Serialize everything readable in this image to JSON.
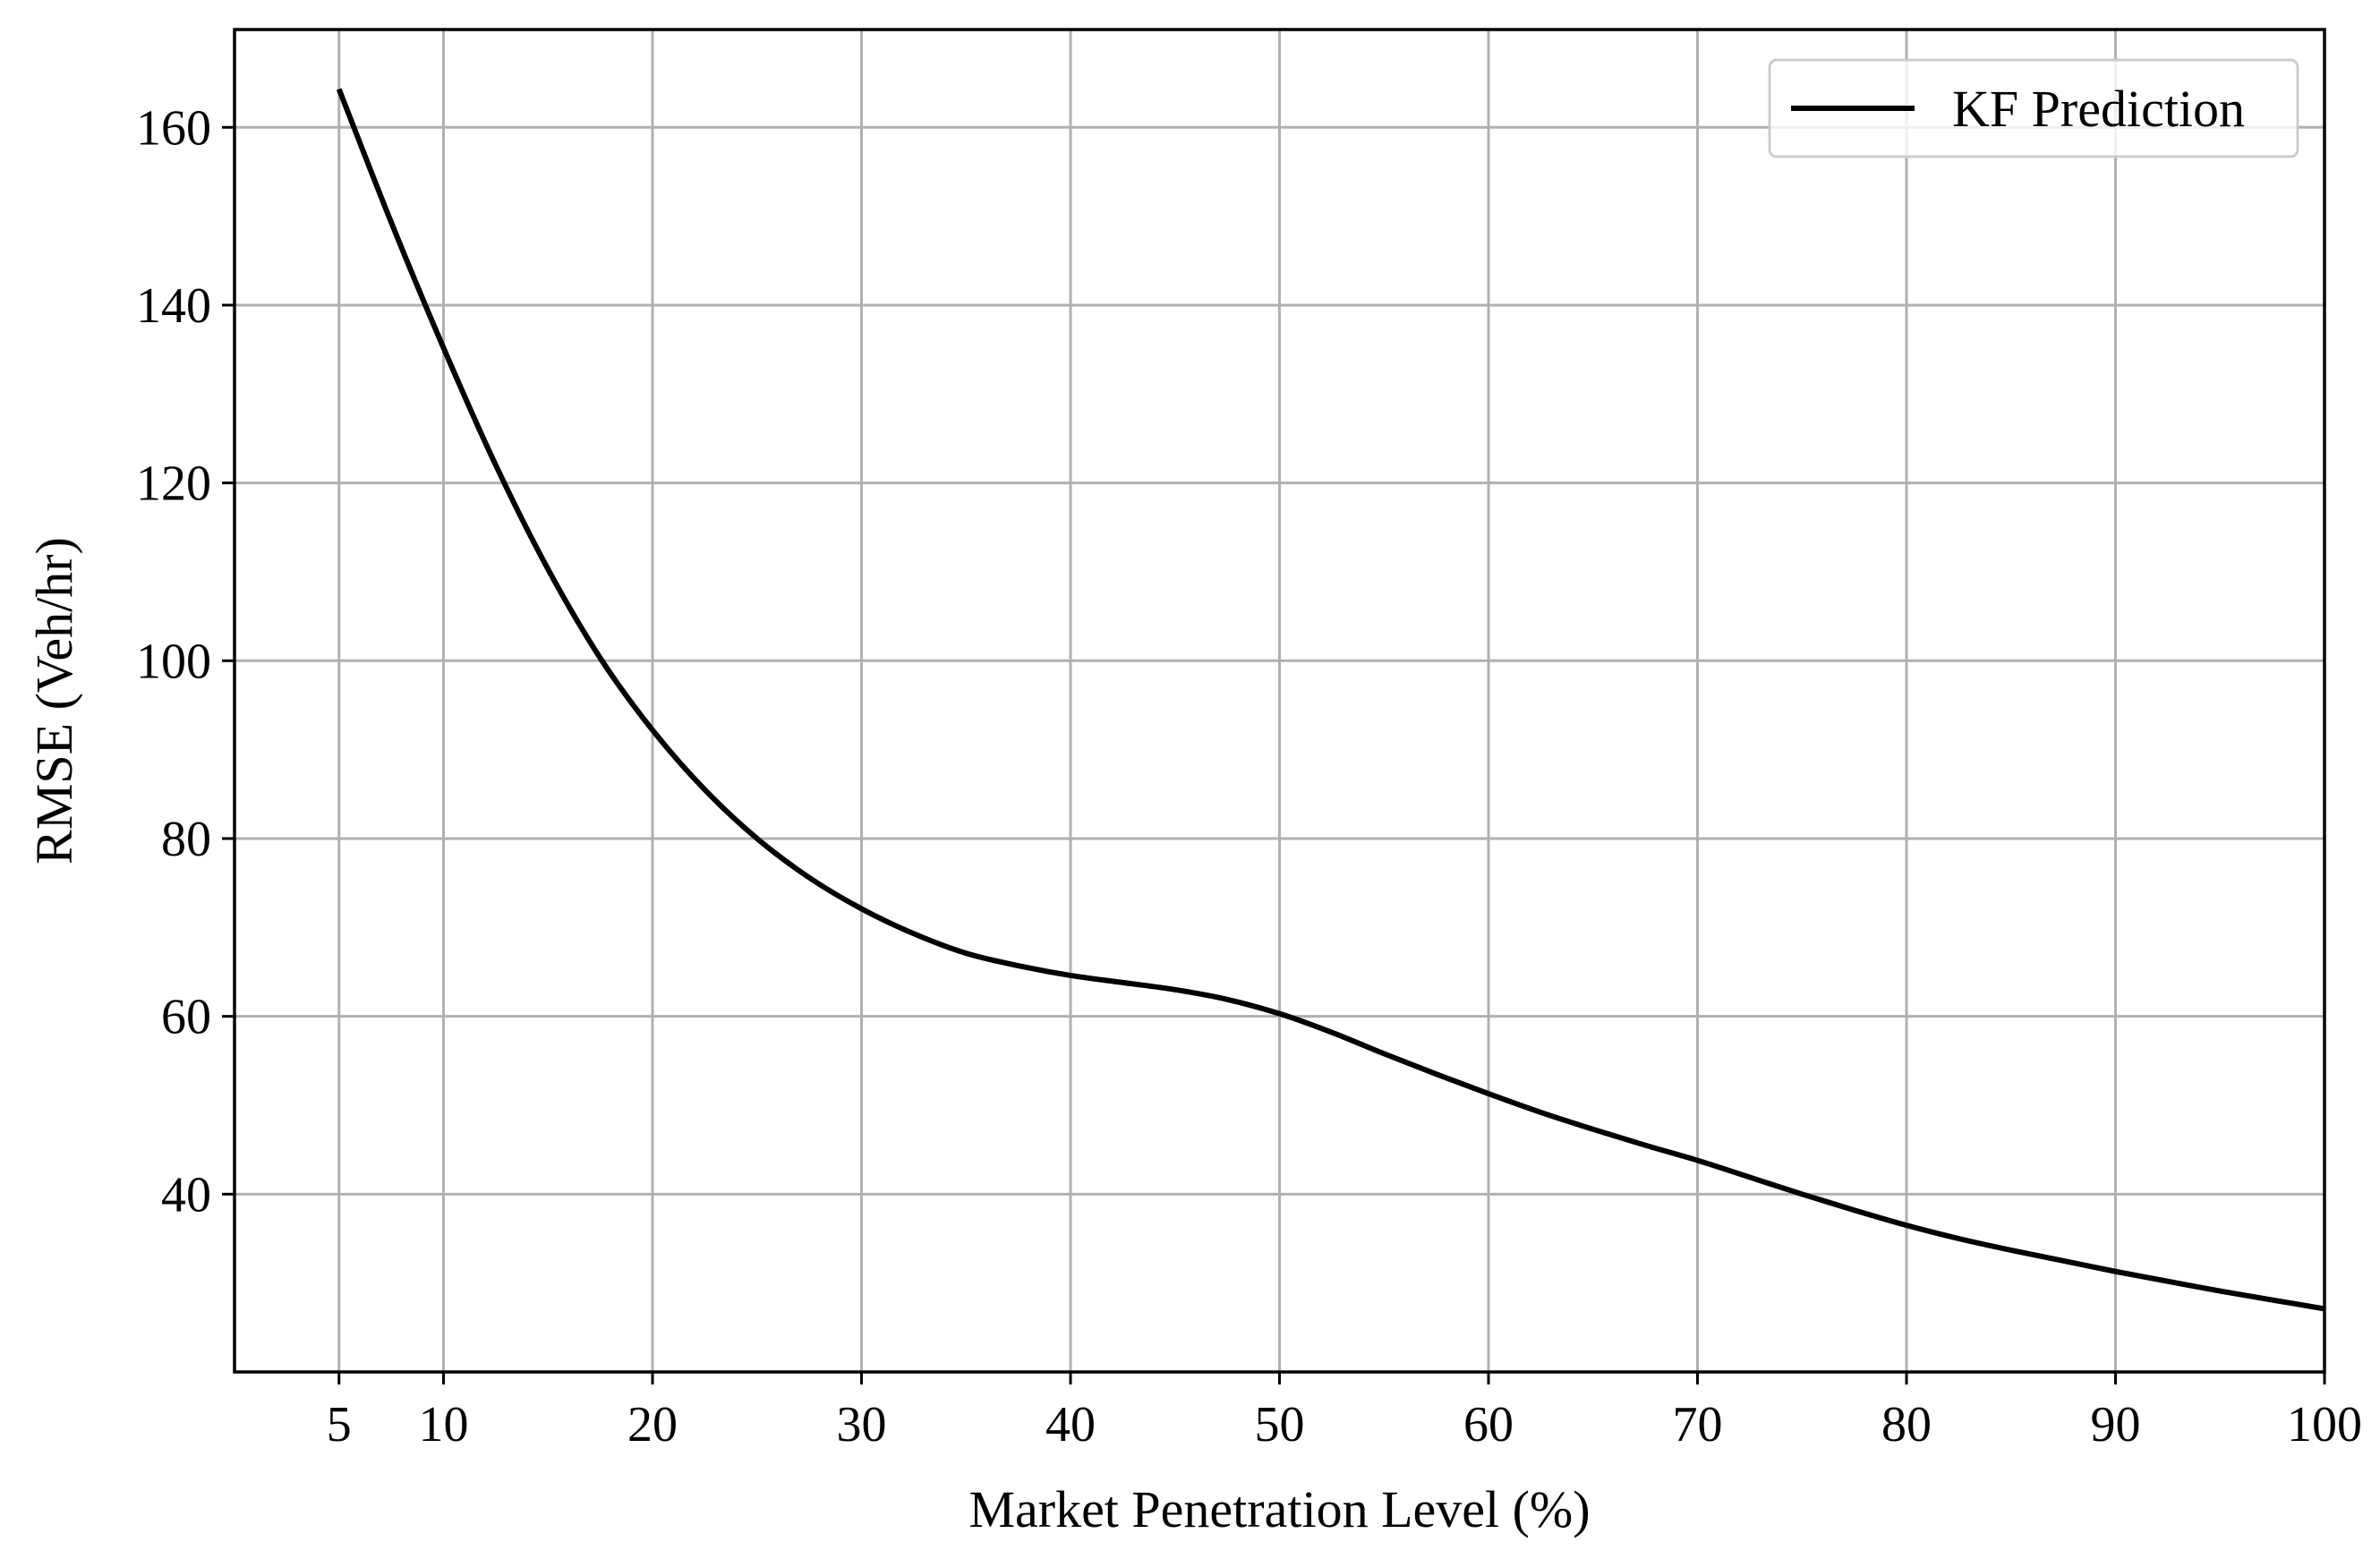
{
  "chart_data": {
    "type": "line",
    "title": "",
    "xlabel": "Market Penetration Level (%)",
    "ylabel": "RMSE (Veh/hr)",
    "xlim": [
      0,
      100
    ],
    "ylim": [
      20,
      171
    ],
    "xticks": [
      5,
      10,
      20,
      30,
      40,
      50,
      60,
      70,
      80,
      90,
      100
    ],
    "xtick_labels": [
      "5",
      "10",
      "20",
      "30",
      "40",
      "50",
      "60",
      "70",
      "80",
      "90",
      "100"
    ],
    "yticks": [
      40,
      60,
      80,
      100,
      120,
      140,
      160
    ],
    "ytick_labels": [
      "40",
      "60",
      "80",
      "100",
      "120",
      "140",
      "160"
    ],
    "grid": true,
    "legend": {
      "location": "top-right",
      "entries": [
        "KF Prediction"
      ]
    },
    "series": [
      {
        "name": "KF Prediction",
        "color": "#000000",
        "x": [
          5,
          7.5,
          10,
          12.5,
          15,
          17.5,
          20,
          22.5,
          25,
          27.5,
          30,
          32.5,
          35,
          37.5,
          40,
          42.5,
          45,
          47.5,
          50,
          52.5,
          55,
          57.5,
          60,
          62.5,
          65,
          67.5,
          70,
          72.5,
          75,
          77.5,
          80,
          82.5,
          85,
          87.5,
          90,
          92.5,
          95,
          97.5,
          100
        ],
        "y": [
          164.3,
          149.3,
          135.2,
          122.0,
          110.3,
          100.3,
          92.2,
          85.5,
          80.0,
          75.6,
          72.1,
          69.3,
          67.1,
          65.7,
          64.6,
          63.8,
          63.0,
          61.9,
          60.3,
          58.2,
          55.8,
          53.5,
          51.3,
          49.2,
          47.3,
          45.5,
          43.8,
          41.9,
          40.0,
          38.2,
          36.5,
          35.0,
          33.7,
          32.5,
          31.3,
          30.2,
          29.1,
          28.1,
          27.1
        ]
      }
    ]
  }
}
